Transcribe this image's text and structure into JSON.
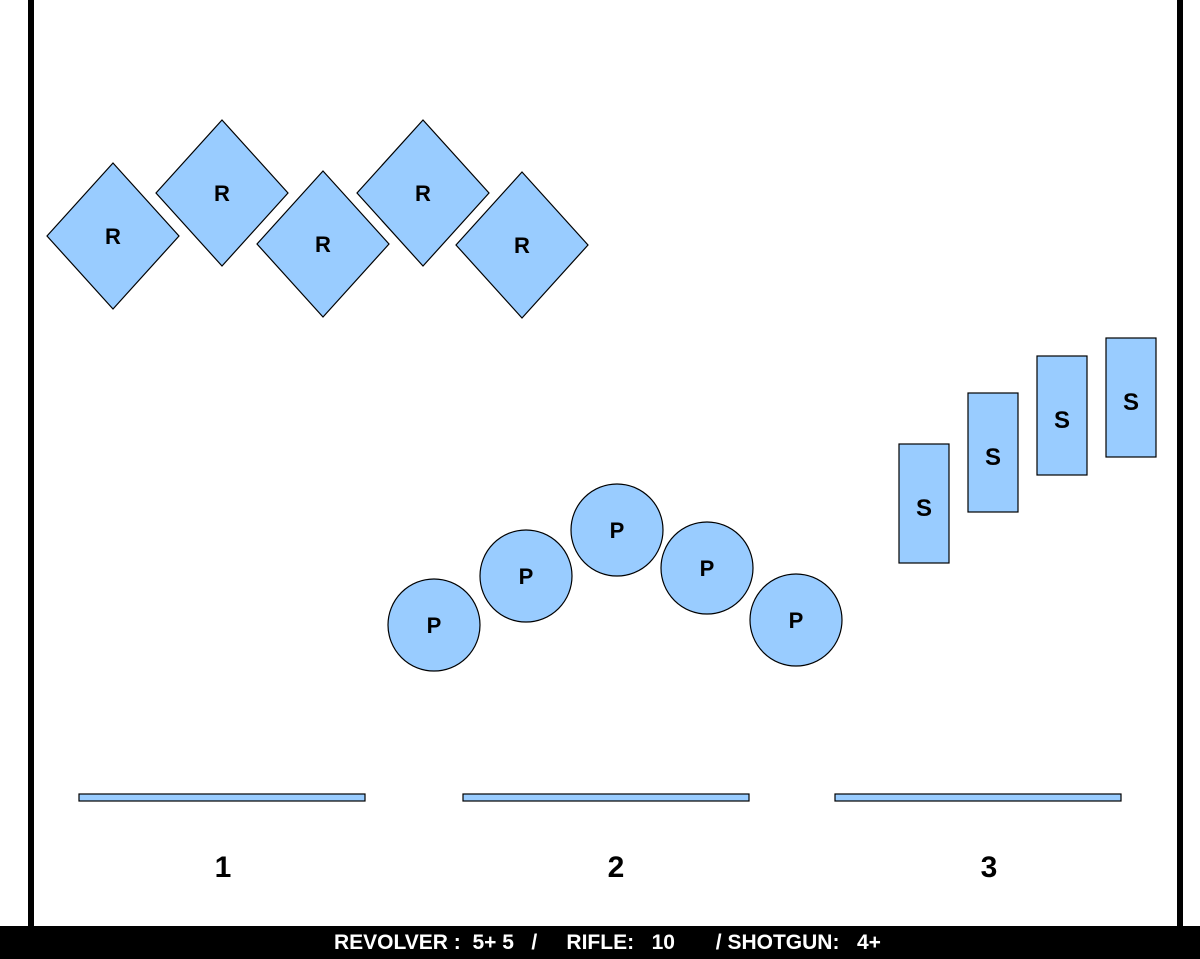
{
  "colors": {
    "target_fill": "#99ccff",
    "target_stroke": "#000000",
    "wall": "#000000",
    "footer_bg": "#000000",
    "footer_text": "#ffffff"
  },
  "diagram": {
    "revolver_targets": [
      {
        "label": "R"
      },
      {
        "label": "R"
      },
      {
        "label": "R"
      },
      {
        "label": "R"
      },
      {
        "label": "R"
      }
    ],
    "pistol_targets": [
      {
        "label": "P"
      },
      {
        "label": "P"
      },
      {
        "label": "P"
      },
      {
        "label": "P"
      },
      {
        "label": "P"
      }
    ],
    "shotgun_targets": [
      {
        "label": "S"
      },
      {
        "label": "S"
      },
      {
        "label": "S"
      },
      {
        "label": "S"
      }
    ],
    "stations": [
      {
        "number": "1"
      },
      {
        "number": "2"
      },
      {
        "number": "3"
      }
    ]
  },
  "footer": {
    "text": "REVOLVER :  5+ 5   /     RIFLE:   10       / SHOTGUN:   4+"
  }
}
